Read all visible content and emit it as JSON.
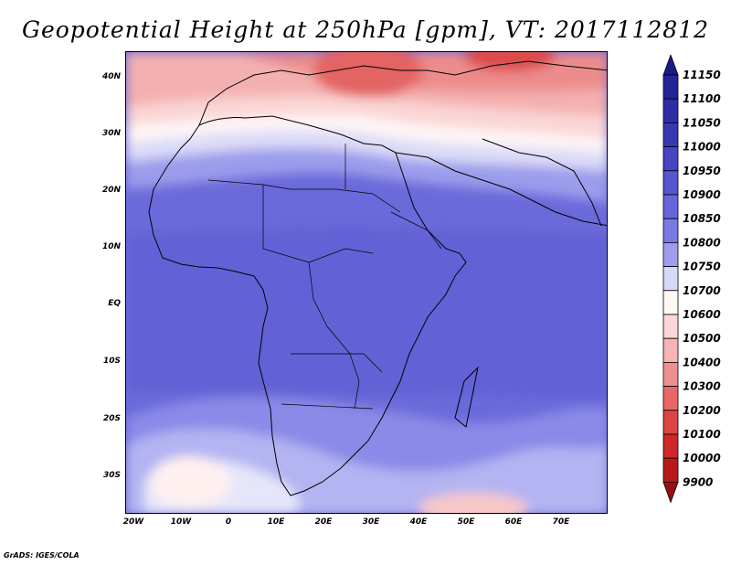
{
  "title": "Geopotential Height at 250hPa [gpm], VT: 2017112812",
  "footer": "GrADS: IGES/COLA",
  "map": {
    "projection": "latlon",
    "lon_range": [
      -23,
      80
    ],
    "lat_range": [
      -37,
      45
    ],
    "lat_labels": [
      "40N",
      "30N",
      "20N",
      "10N",
      "EQ",
      "10S",
      "20S",
      "30S"
    ],
    "lat_values": [
      40,
      30,
      20,
      10,
      0,
      -10,
      -20,
      -30
    ],
    "lon_labels": [
      "20W",
      "10W",
      "0",
      "10E",
      "20E",
      "30E",
      "40E",
      "50E",
      "60E",
      "70E"
    ],
    "lon_values": [
      -20,
      -10,
      0,
      10,
      20,
      30,
      40,
      50,
      60,
      70
    ]
  },
  "colorbar": {
    "levels": [
      "11150",
      "11100",
      "11050",
      "11000",
      "10950",
      "10900",
      "10850",
      "10800",
      "10750",
      "10700",
      "10600",
      "10500",
      "10400",
      "10300",
      "10200",
      "10100",
      "10000",
      "9900"
    ],
    "colors": [
      "#1a1a8c",
      "#23239a",
      "#2e2ea8",
      "#3838b4",
      "#4646c4",
      "#5656d2",
      "#6666dc",
      "#7a7ae4",
      "#9e9ef0",
      "#d8d8f8",
      "#fff6f6",
      "#fbd6d6",
      "#f6b4b4",
      "#ef9090",
      "#e86868",
      "#de4444",
      "#d02828",
      "#b81a1a",
      "#9a1010"
    ]
  },
  "field_bands": [
    {
      "name": "band-north-deep",
      "color": "#e05454"
    },
    {
      "name": "band-north-2",
      "color": "#ef8e8e"
    },
    {
      "name": "band-north-3",
      "color": "#f7b9b9"
    },
    {
      "name": "band-north-4",
      "color": "#fcdcdc"
    },
    {
      "name": "band-white",
      "color": "#fff7f7"
    },
    {
      "name": "band-blue-light",
      "color": "#d6d6f6"
    },
    {
      "name": "band-blue-2",
      "color": "#a4a4ee"
    },
    {
      "name": "band-blue-3",
      "color": "#8282e6"
    },
    {
      "name": "band-blue-4",
      "color": "#7070de"
    },
    {
      "name": "band-blue-5",
      "color": "#6464d8"
    }
  ]
}
